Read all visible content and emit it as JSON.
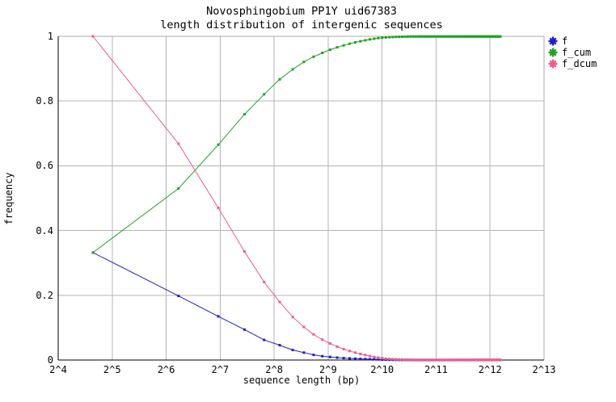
{
  "colors": {
    "f": "#1e1ec8",
    "f_cum": "#1ea320",
    "f_dcum": "#ee5b8e",
    "grid": "#b4b4b4",
    "frame_gray": "#a8a8a8",
    "axis_black": "#000000",
    "background": "#ffffff",
    "text": "#000000"
  },
  "chart_data": {
    "type": "line",
    "title": "Novosphingobium PP1Y uid67383",
    "subtitle": "length distribution of intergenic sequences",
    "xlabel": "sequence length (bp)",
    "ylabel": "frequency",
    "x_scale": "log2",
    "xlim_log2": [
      4,
      13
    ],
    "ylim": [
      0,
      1
    ],
    "grid": true,
    "legend_position": "outside-top-right",
    "x_tick_labels": [
      "2^4",
      "2^5",
      "2^6",
      "2^7",
      "2^8",
      "2^9",
      "2^10",
      "2^11",
      "2^12",
      "2^13"
    ],
    "y_tick_labels": [
      "0",
      "0.2",
      "0.4",
      "0.6",
      "0.8",
      "1"
    ],
    "y_tick_values": [
      0,
      0.2,
      0.4,
      0.6,
      0.8,
      1
    ],
    "bin_width_bp": 50,
    "bin_centers_bp": [
      25,
      75,
      125,
      175,
      225,
      275,
      325,
      375,
      425,
      475,
      525,
      575,
      625,
      675,
      725,
      775,
      825,
      875,
      925,
      975,
      1025,
      1075,
      1125,
      1175,
      1225,
      1275,
      1325,
      1375,
      1425,
      1475
    ],
    "tail": {
      "x_start": 1525,
      "x_end": 4675,
      "step": 50,
      "values": {
        "f": 0.0001,
        "f_cum": 0.9995,
        "f_dcum": 0.0005
      }
    },
    "series": [
      {
        "name": "f",
        "color": "#1e1ec8",
        "values": [
          0.332,
          0.198,
          0.135,
          0.094,
          0.062,
          0.046,
          0.031,
          0.023,
          0.016,
          0.012,
          0.0095,
          0.0075,
          0.006,
          0.005,
          0.0042,
          0.0036,
          0.003,
          0.0026,
          0.0022,
          0.0019,
          0.0012,
          0.0009,
          0.0007,
          0.0005,
          0.0004,
          0.0003,
          0.0003,
          0.0002,
          0.0002,
          0.0002
        ]
      },
      {
        "name": "f_cum",
        "color": "#1ea320",
        "values": [
          0.332,
          0.53,
          0.665,
          0.759,
          0.821,
          0.867,
          0.898,
          0.921,
          0.937,
          0.949,
          0.9585,
          0.966,
          0.972,
          0.977,
          0.9812,
          0.9848,
          0.9878,
          0.9904,
          0.9926,
          0.9945,
          0.9957,
          0.9966,
          0.9973,
          0.9978,
          0.9982,
          0.9985,
          0.9988,
          0.999,
          0.9992,
          0.9994
        ]
      },
      {
        "name": "f_dcum",
        "color": "#ee5b8e",
        "values": [
          1.0,
          0.668,
          0.47,
          0.335,
          0.241,
          0.179,
          0.133,
          0.102,
          0.079,
          0.063,
          0.051,
          0.0415,
          0.034,
          0.028,
          0.023,
          0.0188,
          0.0152,
          0.0122,
          0.0096,
          0.0074,
          0.0055,
          0.0043,
          0.0034,
          0.0027,
          0.0022,
          0.0018,
          0.0015,
          0.0012,
          0.001,
          0.0008
        ]
      }
    ]
  }
}
